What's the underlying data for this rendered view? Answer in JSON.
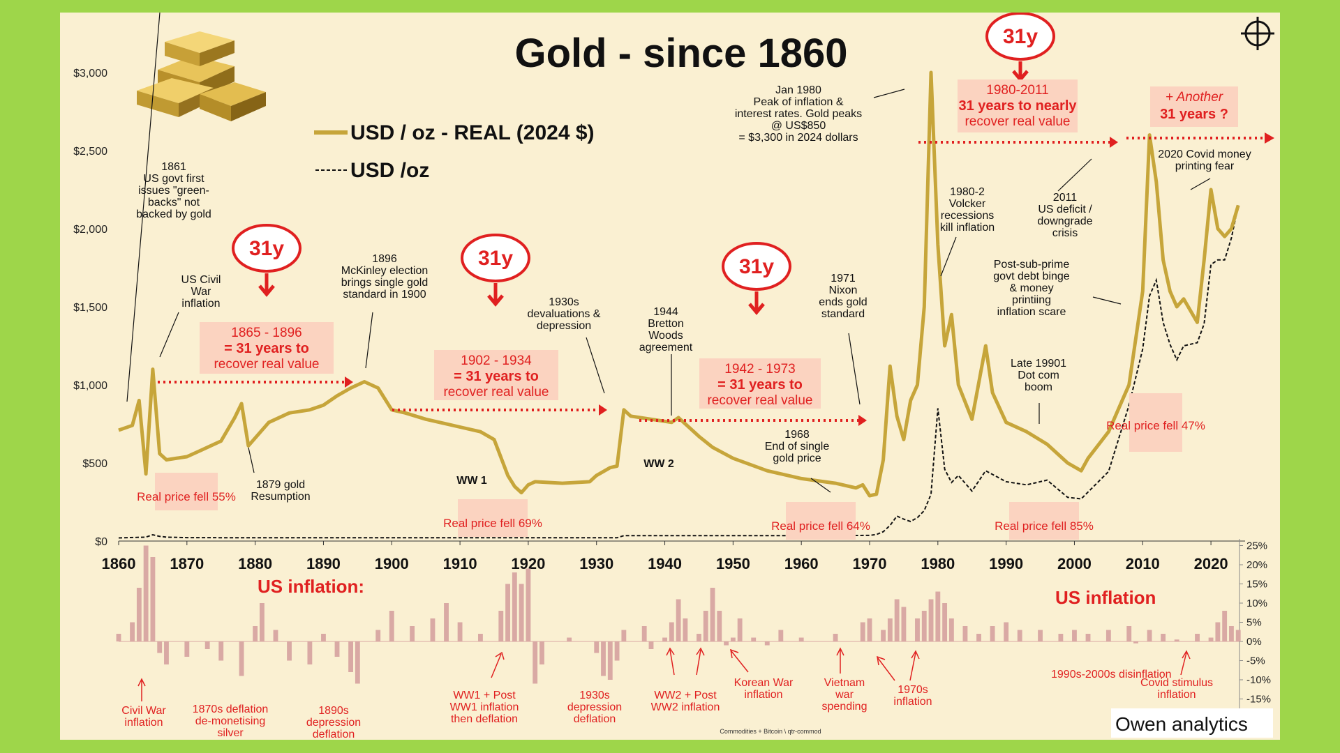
{
  "title": "Gold - since 1860",
  "legend": {
    "real": "USD / oz - REAL (2024 $)",
    "nominal": "USD /oz"
  },
  "icons": {
    "gold_bars": "gold-bars-image",
    "crosshair": "crosshair-icon"
  },
  "colors": {
    "gold": "#c6a53a",
    "red": "#e02020",
    "inflation_bar": "#d9a9a4",
    "box": "#fbd3c0",
    "background": "#9ed64a",
    "panel": "#faf0d2"
  },
  "brand": {
    "logo": "Owen analytics",
    "footer": "Commodities + Bitcoin  \\ qtr-commod"
  },
  "cycles": [
    {
      "badge": "31y",
      "label_1": "1865 - 1896",
      "label_2": "= 31 years to",
      "label_3": "recover real value"
    },
    {
      "badge": "31y",
      "label_1": "1902 - 1934",
      "label_2": "= 31 years to",
      "label_3": "recover real value"
    },
    {
      "badge": "31y",
      "label_1": "1942 - 1973",
      "label_2": "= 31 years to",
      "label_3": "recover real value"
    },
    {
      "badge": "31y",
      "label_1": "1980-2011",
      "label_2": "31 years to nearly",
      "label_3": "recover real value"
    },
    {
      "badge": "",
      "label_1": "+ Another",
      "label_2": "31 years ?",
      "label_3": ""
    }
  ],
  "falls": [
    "Real price fell 55%",
    "Real price fell 69%",
    "Real price fell 64%",
    "Real price fell 85%",
    "Real price fell 47%"
  ],
  "annotations": {
    "a1861": [
      "1861",
      "US govt first",
      "issues \"green-",
      "backs\" not",
      "backed by gold"
    ],
    "civilwar": [
      "US Civil",
      "War",
      "inflation"
    ],
    "a1879": [
      "1879 gold",
      "Resumption"
    ],
    "a1896": [
      "1896",
      "McKinley election",
      "brings single gold",
      "standard in 1900"
    ],
    "a1930s": [
      "1930s",
      "devaluations &",
      "depression"
    ],
    "ww1": "WW 1",
    "ww2": "WW 2",
    "a1944": [
      "1944",
      "Bretton",
      "Woods",
      "agreement"
    ],
    "a1968": [
      "1968",
      "End of single",
      "gold price"
    ],
    "a1971": [
      "1971",
      "Nixon",
      "ends gold",
      "standard"
    ],
    "a1980": [
      "Jan 1980",
      "Peak of inflation &",
      "interest rates. Gold peaks",
      "@ US$850",
      "= $3,300 in 2024 dollars"
    ],
    "volcker": [
      "1980-2",
      "Volcker",
      "recessions",
      "kill inflation"
    ],
    "a2011": [
      "2011",
      "US deficit /",
      "downgrade",
      "crisis"
    ],
    "subprime": [
      "Post-sub-prime",
      "govt debt binge",
      "& money",
      "printiing",
      "inflation scare"
    ],
    "dotcom": [
      "Late 19901",
      "Dot com",
      "boom"
    ],
    "covid": [
      "2020 Covid money",
      "printing fear"
    ]
  },
  "inflation_title_left": "US inflation:",
  "inflation_title_right": "US inflation",
  "inflation_notes": {
    "civilwar": [
      "Civil War",
      "inflation"
    ],
    "deflation1870s": [
      "1870s deflation",
      "de-monetising",
      "silver"
    ],
    "depression1890s": [
      "1890s",
      "depression",
      "deflation"
    ],
    "ww1": [
      "WW1 + Post",
      "WW1 inflation",
      "then deflation"
    ],
    "depression1930s": [
      "1930s",
      "depression",
      "deflation"
    ],
    "ww2": [
      "WW2 + Post",
      "WW2 inflation"
    ],
    "korean": [
      "Korean War",
      "inflation"
    ],
    "vietnam": [
      "Vietnam",
      "war",
      "spending"
    ],
    "s1970s": [
      "1970s",
      "inflation"
    ],
    "disinflation": "1990s-2000s disinflation",
    "covidstim": [
      "Covid stimulus",
      "inflation"
    ]
  },
  "chart_data": {
    "type": "line",
    "title": "Gold - since 1860",
    "x_ticks": [
      1860,
      1870,
      1880,
      1890,
      1900,
      1910,
      1920,
      1930,
      1940,
      1950,
      1960,
      1970,
      1980,
      1990,
      2000,
      2010,
      2020
    ],
    "y_ticks": [
      "$0",
      "$500",
      "$1,000",
      "$1,500",
      "$2,000",
      "$2,500",
      "$3,000"
    ],
    "ylim": [
      0,
      3000
    ],
    "xlim": [
      1860,
      2025
    ],
    "series": [
      {
        "name": "USD / oz - REAL (2024 $)",
        "x": [
          1860,
          1862,
          1863,
          1864,
          1865,
          1866,
          1867,
          1870,
          1872,
          1875,
          1877,
          1878,
          1879,
          1880,
          1882,
          1885,
          1888,
          1890,
          1892,
          1894,
          1896,
          1897,
          1898,
          1900,
          1902,
          1905,
          1910,
          1913,
          1915,
          1917,
          1918,
          1919,
          1920,
          1921,
          1925,
          1929,
          1930,
          1932,
          1933,
          1934,
          1935,
          1938,
          1941,
          1942,
          1945,
          1947,
          1950,
          1955,
          1960,
          1965,
          1968,
          1969,
          1970,
          1971,
          1972,
          1973,
          1974,
          1975,
          1976,
          1977,
          1978,
          1979,
          1980,
          1981,
          1982,
          1983,
          1985,
          1987,
          1988,
          1990,
          1993,
          1996,
          1999,
          2001,
          2002,
          2005,
          2007,
          2008,
          2010,
          2011,
          2012,
          2013,
          2014,
          2015,
          2016,
          2018,
          2019,
          2020,
          2021,
          2022,
          2023,
          2024
        ],
        "values": [
          710,
          740,
          900,
          430,
          1100,
          560,
          520,
          540,
          580,
          640,
          790,
          880,
          610,
          660,
          760,
          820,
          840,
          870,
          930,
          980,
          1020,
          1000,
          980,
          840,
          820,
          780,
          730,
          700,
          650,
          420,
          350,
          310,
          360,
          380,
          370,
          380,
          420,
          470,
          480,
          840,
          800,
          780,
          760,
          790,
          670,
          600,
          530,
          450,
          400,
          370,
          340,
          360,
          290,
          300,
          520,
          1120,
          800,
          650,
          900,
          1000,
          1500,
          3000,
          1900,
          1250,
          1450,
          1000,
          780,
          1250,
          950,
          760,
          700,
          620,
          500,
          450,
          530,
          700,
          900,
          1000,
          1600,
          2600,
          2300,
          1800,
          1600,
          1500,
          1550,
          1400,
          1800,
          2250,
          2000,
          1950,
          2000,
          2150
        ]
      },
      {
        "name": "USD /oz",
        "x": [
          1860,
          1864,
          1865,
          1866,
          1867,
          1870,
          1880,
          1900,
          1933,
          1934,
          1960,
          1970,
          1971,
          1972,
          1973,
          1974,
          1975,
          1976,
          1977,
          1978,
          1979,
          1980,
          1981,
          1982,
          1983,
          1985,
          1987,
          1990,
          1993,
          1996,
          1999,
          2001,
          2005,
          2008,
          2010,
          2011,
          2012,
          2013,
          2014,
          2015,
          2016,
          2018,
          2019,
          2020,
          2021,
          2022,
          2023,
          2024
        ],
        "values": [
          20,
          25,
          40,
          30,
          25,
          22,
          21,
          21,
          21,
          35,
          35,
          36,
          42,
          60,
          100,
          160,
          140,
          125,
          150,
          195,
          300,
          850,
          460,
          375,
          420,
          320,
          450,
          380,
          360,
          390,
          280,
          270,
          445,
          870,
          1230,
          1570,
          1670,
          1400,
          1260,
          1160,
          1250,
          1270,
          1390,
          1770,
          1800,
          1800,
          1940,
          2150
        ]
      }
    ],
    "inflation": {
      "right_axis_ticks": [
        "25%",
        "20%",
        "15%",
        "10%",
        "5%",
        "0%",
        "-5%",
        "-10%",
        "-15%"
      ],
      "ylim": [
        -15,
        25
      ],
      "years": [
        1860,
        1862,
        1863,
        1864,
        1865,
        1866,
        1867,
        1870,
        1873,
        1875,
        1878,
        1880,
        1881,
        1883,
        1885,
        1888,
        1890,
        1892,
        1894,
        1895,
        1898,
        1900,
        1903,
        1906,
        1908,
        1910,
        1913,
        1916,
        1917,
        1918,
        1919,
        1920,
        1921,
        1922,
        1926,
        1930,
        1931,
        1932,
        1933,
        1934,
        1937,
        1938,
        1940,
        1941,
        1942,
        1943,
        1945,
        1946,
        1947,
        1948,
        1949,
        1950,
        1951,
        1953,
        1955,
        1957,
        1960,
        1965,
        1969,
        1970,
        1972,
        1973,
        1974,
        1975,
        1977,
        1978,
        1979,
        1980,
        1981,
        1982,
        1984,
        1986,
        1988,
        1990,
        1992,
        1995,
        1998,
        2000,
        2002,
        2005,
        2008,
        2009,
        2011,
        2013,
        2015,
        2018,
        2020,
        2021,
        2022,
        2023,
        2024
      ],
      "values": [
        2,
        5,
        14,
        25,
        22,
        -3,
        -6,
        -4,
        -2,
        -5,
        -9,
        4,
        10,
        3,
        -5,
        -6,
        2,
        -4,
        -8,
        -11,
        3,
        8,
        4,
        6,
        10,
        5,
        2,
        8,
        15,
        18,
        15,
        19,
        -11,
        -6,
        1,
        -3,
        -9,
        -10,
        -5,
        3,
        4,
        -2,
        1,
        5,
        11,
        6,
        2,
        8,
        14,
        8,
        -1,
        1,
        6,
        1,
        -1,
        3,
        1,
        2,
        5,
        6,
        3,
        6,
        11,
        9,
        6,
        8,
        11,
        13,
        10,
        6,
        4,
        2,
        4,
        5,
        3,
        3,
        2,
        3,
        2,
        3,
        4,
        -0.5,
        3,
        2,
        0.5,
        2,
        1,
        5,
        8,
        4,
        3
      ]
    }
  }
}
